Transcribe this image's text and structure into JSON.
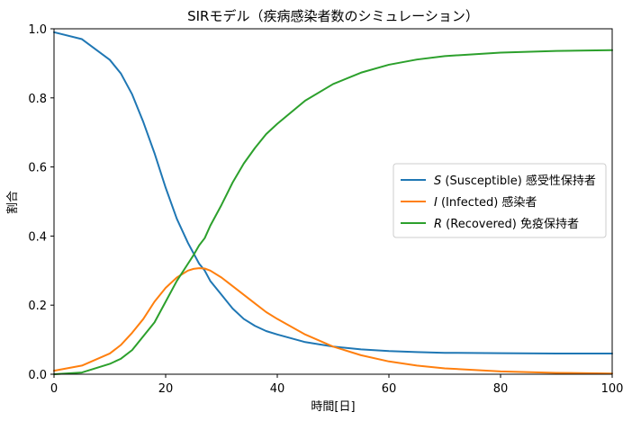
{
  "chart_data": {
    "type": "line",
    "title": "SIRモデル（疾病感染者数のシミュレーション）",
    "xlabel": "時間[日]",
    "ylabel": "割合",
    "xlim": [
      0,
      100
    ],
    "ylim": [
      0,
      1.0
    ],
    "xticks": [
      0,
      20,
      40,
      60,
      80,
      100
    ],
    "yticks": [
      0.0,
      0.2,
      0.4,
      0.6,
      0.8,
      1.0
    ],
    "xtick_labels": [
      "0",
      "20",
      "40",
      "60",
      "80",
      "100"
    ],
    "ytick_labels": [
      "0.0",
      "0.2",
      "0.4",
      "0.6",
      "0.8",
      "1.0"
    ],
    "grid": false,
    "legend_position": "center-right",
    "x": [
      0,
      5,
      10,
      12,
      14,
      16,
      18,
      20,
      22,
      24,
      25,
      26,
      27,
      28,
      30,
      32,
      34,
      36,
      38,
      40,
      45,
      50,
      55,
      60,
      65,
      70,
      80,
      90,
      100
    ],
    "series": [
      {
        "letter": "S",
        "label": "(Susceptible) 感受性保持者",
        "color": "#1f77b4",
        "values": [
          0.99,
          0.97,
          0.91,
          0.87,
          0.81,
          0.73,
          0.64,
          0.54,
          0.45,
          0.38,
          0.35,
          0.32,
          0.3,
          0.27,
          0.23,
          0.19,
          0.16,
          0.14,
          0.125,
          0.115,
          0.093,
          0.08,
          0.072,
          0.067,
          0.064,
          0.062,
          0.061,
          0.06,
          0.06
        ]
      },
      {
        "letter": "I",
        "label": "(Infected) 感染者",
        "color": "#ff7f0e",
        "values": [
          0.01,
          0.025,
          0.06,
          0.085,
          0.12,
          0.16,
          0.21,
          0.25,
          0.28,
          0.3,
          0.305,
          0.307,
          0.306,
          0.3,
          0.28,
          0.255,
          0.23,
          0.205,
          0.18,
          0.16,
          0.115,
          0.08,
          0.055,
          0.037,
          0.025,
          0.017,
          0.008,
          0.004,
          0.002
        ]
      },
      {
        "letter": "R",
        "label": "(Recovered) 免疫保持者",
        "color": "#2ca02c",
        "values": [
          0.0,
          0.005,
          0.03,
          0.045,
          0.07,
          0.11,
          0.15,
          0.21,
          0.27,
          0.32,
          0.345,
          0.373,
          0.394,
          0.43,
          0.49,
          0.555,
          0.61,
          0.655,
          0.695,
          0.725,
          0.792,
          0.84,
          0.873,
          0.896,
          0.911,
          0.921,
          0.931,
          0.936,
          0.938
        ]
      }
    ]
  }
}
